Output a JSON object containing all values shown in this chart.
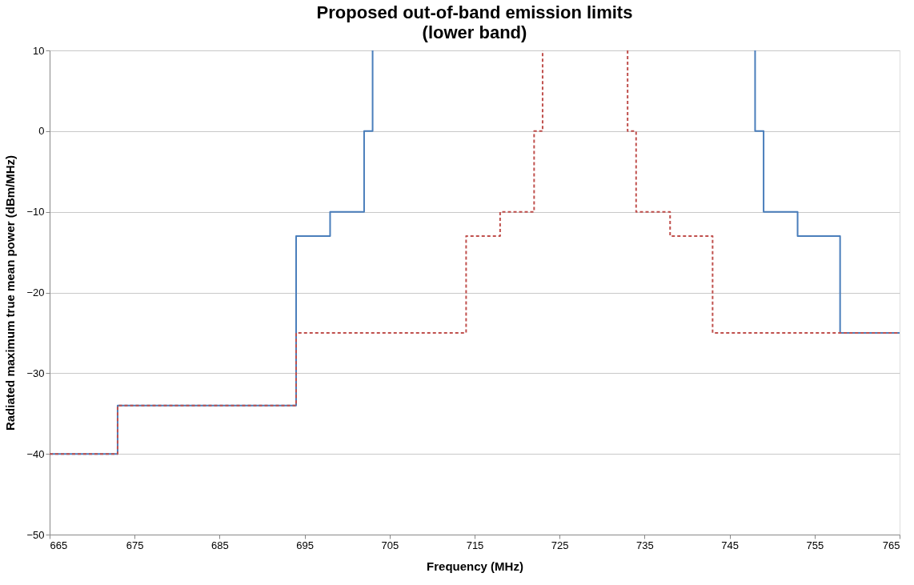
{
  "chart_data": {
    "type": "step",
    "title": "Proposed out-of-band emission limits",
    "subtitle": "(lower band)",
    "xlabel": "Frequency (MHz)",
    "ylabel": "Radiated maximum true mean power (dBm/MHz)",
    "series": [
      {
        "color": "#4a7ebb",
        "line_style": "solid",
        "x": [
          665,
          673,
          694,
          698,
          702,
          703,
          725,
          748,
          748,
          749,
          753,
          758,
          765
        ],
        "values": [
          -40,
          -34,
          -13,
          -10,
          0,
          10,
          null,
          10,
          0,
          -10,
          -13,
          -25,
          -25
        ]
      },
      {
        "color": "#c0504d",
        "line_style": "dashed",
        "x": [
          665,
          673,
          694,
          714,
          718,
          722,
          723,
          728,
          733,
          733,
          734,
          738,
          743,
          765
        ],
        "values": [
          -40,
          -34,
          -25,
          -13,
          -10,
          0,
          10,
          null,
          10,
          0,
          -10,
          -13,
          -25,
          -25
        ]
      }
    ],
    "xlim": [
      665,
      765
    ],
    "xticks": [
      665,
      675,
      685,
      695,
      705,
      715,
      725,
      735,
      745,
      755,
      765
    ],
    "ylim": [
      -50,
      10
    ],
    "yticks": [
      -50,
      -40,
      -30,
      -20,
      -10,
      0,
      10
    ],
    "grid": "y",
    "marker": "none"
  }
}
